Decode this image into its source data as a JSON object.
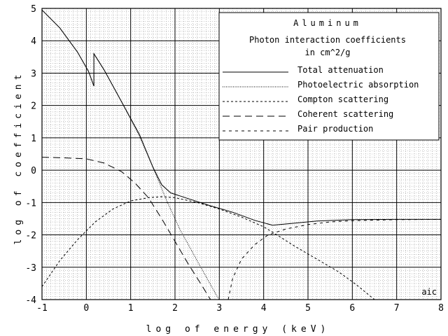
{
  "chart_data": {
    "type": "line",
    "title": "Aluminum",
    "subtitle_lines": [
      "Photon interaction coefficients",
      "in cm^2/g"
    ],
    "xlabel": "log of energy (keV)",
    "ylabel": "log of coefficient",
    "xlim": [
      -1,
      8
    ],
    "ylim": [
      -4,
      5
    ],
    "x_ticks": [
      "-1",
      "0",
      "1",
      "2",
      "3",
      "4",
      "5",
      "6",
      "7",
      "8"
    ],
    "y_ticks": [
      "5",
      "4",
      "3",
      "2",
      "1",
      "0",
      "-1",
      "-2",
      "-3",
      "-4"
    ],
    "grid": true,
    "legend_position": "top-right",
    "annotation": "aic",
    "series": [
      {
        "name": "Total attenuation",
        "dash": "solid",
        "points": [
          [
            -1.0,
            4.95
          ],
          [
            -0.6,
            4.4
          ],
          [
            -0.2,
            3.65
          ],
          [
            0.05,
            3.05
          ],
          [
            0.17,
            2.6
          ],
          [
            0.17,
            3.6
          ],
          [
            0.4,
            3.1
          ],
          [
            0.8,
            2.1
          ],
          [
            1.2,
            1.1
          ],
          [
            1.5,
            0.1
          ],
          [
            1.7,
            -0.45
          ],
          [
            1.9,
            -0.7
          ],
          [
            2.3,
            -0.88
          ],
          [
            2.8,
            -1.1
          ],
          [
            3.3,
            -1.3
          ],
          [
            3.8,
            -1.55
          ],
          [
            4.2,
            -1.7
          ],
          [
            4.6,
            -1.65
          ],
          [
            5.2,
            -1.57
          ],
          [
            6.0,
            -1.53
          ],
          [
            7.0,
            -1.52
          ],
          [
            8.0,
            -1.52
          ]
        ]
      },
      {
        "name": "Photoelectric absorption",
        "dash": "dotted",
        "points": [
          [
            -1.0,
            4.95
          ],
          [
            -0.6,
            4.4
          ],
          [
            -0.2,
            3.65
          ],
          [
            0.05,
            3.05
          ],
          [
            0.17,
            2.6
          ],
          [
            0.17,
            3.6
          ],
          [
            0.4,
            3.1
          ],
          [
            0.8,
            2.1
          ],
          [
            1.2,
            1.05
          ],
          [
            1.5,
            0.1
          ],
          [
            1.8,
            -0.9
          ],
          [
            2.1,
            -1.8
          ],
          [
            2.5,
            -2.8
          ],
          [
            2.95,
            -3.9
          ],
          [
            3.0,
            -4.0
          ]
        ]
      },
      {
        "name": "Compton scattering",
        "dash": "short-dash",
        "points": [
          [
            -1.0,
            -3.6
          ],
          [
            -0.6,
            -2.8
          ],
          [
            -0.2,
            -2.15
          ],
          [
            0.2,
            -1.6
          ],
          [
            0.6,
            -1.2
          ],
          [
            1.0,
            -0.95
          ],
          [
            1.4,
            -0.85
          ],
          [
            1.7,
            -0.82
          ],
          [
            2.0,
            -0.85
          ],
          [
            2.5,
            -1.0
          ],
          [
            3.0,
            -1.2
          ],
          [
            3.5,
            -1.45
          ],
          [
            4.0,
            -1.75
          ],
          [
            4.3,
            -2.0
          ],
          [
            4.7,
            -2.35
          ],
          [
            5.2,
            -2.75
          ],
          [
            5.7,
            -3.15
          ],
          [
            6.1,
            -3.55
          ],
          [
            6.5,
            -4.0
          ]
        ]
      },
      {
        "name": "Coherent scattering",
        "dash": "long-dash",
        "points": [
          [
            -1.0,
            0.4
          ],
          [
            -0.5,
            0.38
          ],
          [
            0.0,
            0.35
          ],
          [
            0.4,
            0.22
          ],
          [
            0.8,
            -0.05
          ],
          [
            1.1,
            -0.4
          ],
          [
            1.4,
            -0.85
          ],
          [
            1.7,
            -1.5
          ],
          [
            2.0,
            -2.2
          ],
          [
            2.3,
            -2.9
          ],
          [
            2.6,
            -3.55
          ],
          [
            2.8,
            -4.0
          ]
        ]
      },
      {
        "name": "Pair production",
        "dash": "dash-dot",
        "points": [
          [
            3.2,
            -4.0
          ],
          [
            3.3,
            -3.35
          ],
          [
            3.5,
            -2.75
          ],
          [
            3.8,
            -2.3
          ],
          [
            4.1,
            -2.0
          ],
          [
            4.5,
            -1.82
          ],
          [
            5.0,
            -1.68
          ],
          [
            5.5,
            -1.6
          ],
          [
            6.0,
            -1.56
          ],
          [
            7.0,
            -1.53
          ],
          [
            8.0,
            -1.52
          ]
        ]
      }
    ]
  }
}
